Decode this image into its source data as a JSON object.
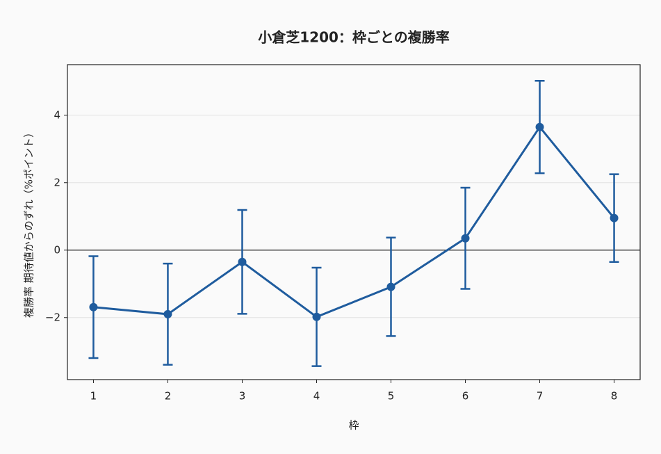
{
  "chart_data": {
    "type": "errorbar-line",
    "title": "小倉芝1200：枠ごとの複勝率",
    "xlabel": "枠",
    "ylabel": "複勝率 期待値からのずれ（%ポイント）",
    "x": [
      1,
      2,
      3,
      4,
      5,
      6,
      7,
      8
    ],
    "values": [
      -1.69,
      -1.9,
      -0.35,
      -1.98,
      -1.09,
      0.35,
      3.65,
      0.95
    ],
    "errors": [
      1.51,
      1.5,
      1.54,
      1.46,
      1.46,
      1.5,
      1.37,
      1.3
    ],
    "color": "#1f5c9e",
    "xlim": [
      0.65,
      8.35
    ],
    "ylim": [
      -3.84,
      5.5
    ],
    "xticks": [
      1,
      2,
      3,
      4,
      5,
      6,
      7,
      8
    ],
    "yticks": [
      {
        "value": -2,
        "label": "−2"
      },
      0,
      2,
      4
    ],
    "hline": 0,
    "grid": true
  }
}
